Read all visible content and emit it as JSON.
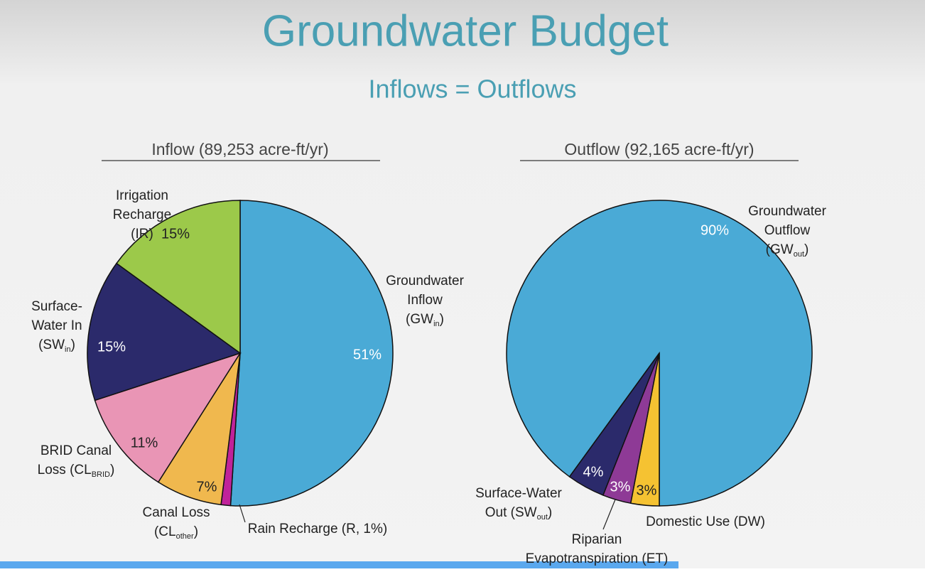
{
  "title": "Groundwater Budget",
  "subtitle": "Inflows = Outflows",
  "chart_data": [
    {
      "type": "pie",
      "title": "Inflow (89,253 acre-ft/yr)",
      "start_angle": 0,
      "categories": [
        {
          "lines": [
            "Groundwater",
            "Inflow",
            "(GW"
          ],
          "sub": "in",
          "end": ")"
        },
        {
          "lines": [
            "Rain Recharge (R, 1%)"
          ]
        },
        {
          "lines": [
            "Canal Loss",
            "(CL"
          ],
          "sub": "other",
          "end": ")"
        },
        {
          "lines": [
            "BRID Canal",
            "Loss (CL"
          ],
          "sub": "BRID",
          "end": ")"
        },
        {
          "lines": [
            "Surface-",
            "Water In",
            "(SW"
          ],
          "sub": "in",
          "end": ")"
        },
        {
          "lines": [
            "Irrigation",
            "Recharge",
            "(IR)"
          ]
        }
      ],
      "values": [
        51,
        1,
        7,
        11,
        15,
        15
      ],
      "value_labels": [
        "51%",
        null,
        "7%",
        "11%",
        "15%",
        "15%"
      ],
      "colors": [
        "#4aaad6",
        "#c0239a",
        "#f0b84e",
        "#e995b5",
        "#2b2a6b",
        "#9cc94a"
      ]
    },
    {
      "type": "pie",
      "title": "Outflow (92,165 acre-ft/yr)",
      "start_angle": 216,
      "categories": [
        {
          "lines": [
            "Groundwater",
            "Outflow",
            "(GW"
          ],
          "sub": "out",
          "end": ")"
        },
        {
          "lines": [
            "Domestic Use (DW)"
          ]
        },
        {
          "lines": [
            "Riparian",
            "Evapotranspiration (ET)"
          ]
        },
        {
          "lines": [
            "Surface-Water",
            "Out (SW"
          ],
          "sub": "out",
          "end": ")"
        }
      ],
      "values": [
        90,
        3,
        3,
        4
      ],
      "value_labels": [
        "90%",
        "3%",
        "3%",
        "4%"
      ],
      "colors": [
        "#4aaad6",
        "#f5c232",
        "#8e3a96",
        "#2b2a6b"
      ]
    }
  ]
}
